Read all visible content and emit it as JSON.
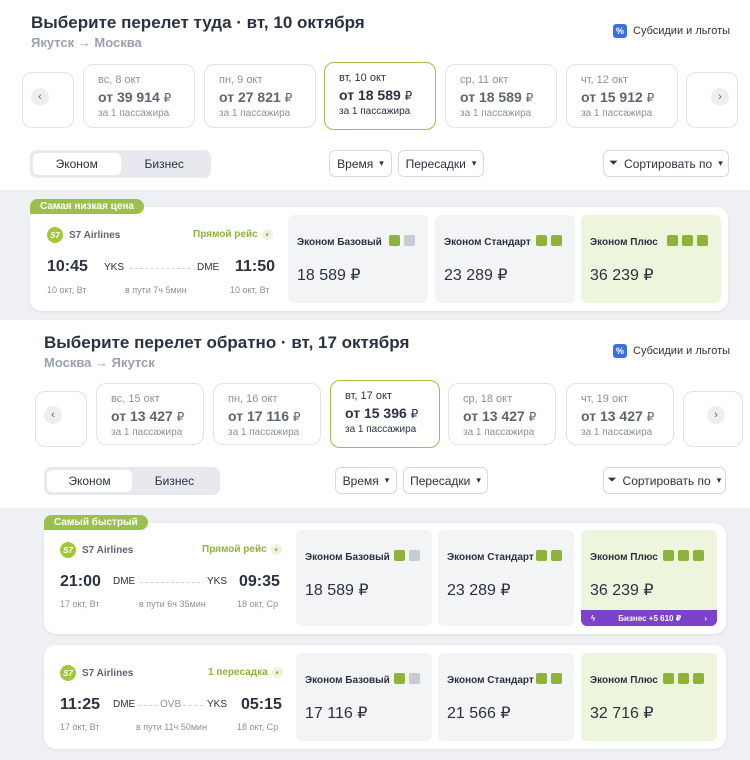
{
  "outbound": {
    "title": "Выберите перелет туда · вт, 10 октября",
    "route": "Якутск → Москва",
    "subsidies": "Субсидии и льготы",
    "dates": [
      {
        "day": "вс, 8 окт",
        "price": "от 39 914",
        "note": "за 1 пассажира"
      },
      {
        "day": "пн, 9 окт",
        "price": "от 27 821",
        "note": "за 1 пассажира"
      },
      {
        "day": "вт, 10 окт",
        "price": "от 18 589",
        "note": "за 1 пассажира",
        "selected": true
      },
      {
        "day": "ср, 11 окт",
        "price": "от 18 589",
        "note": "за 1 пассажира"
      },
      {
        "day": "чт, 12 окт",
        "price": "от 15 912",
        "note": "за 1 пассажира"
      }
    ],
    "class_tabs": [
      "Эконом",
      "Бизнес"
    ],
    "filters": {
      "time": "Время",
      "transfers": "Пересадки",
      "sort": "Сортировать по"
    },
    "flights": [
      {
        "badge": "Самая низкая цена",
        "airline": "S7 Airlines",
        "stops": "Прямой рейс",
        "dep_time": "10:45",
        "dep_code": "YKS",
        "arr_code": "DME",
        "arr_time": "11:50",
        "dep_date": "10 окт, Вт",
        "duration": "в пути 7ч 5мин",
        "arr_date": "10 окт, Вт",
        "fares": [
          {
            "name": "Эконом Базовый",
            "price": "18 589 ₽"
          },
          {
            "name": "Эконом Стандарт",
            "price": "23 289 ₽"
          },
          {
            "name": "Эконом Плюс",
            "price": "36 239 ₽"
          }
        ]
      }
    ]
  },
  "return": {
    "title": "Выберите перелет обратно · вт, 17 октября",
    "route": "Москва → Якутск",
    "subsidies": "Субсидии и льготы",
    "dates": [
      {
        "day": "вс, 15 окт",
        "price": "от 13 427",
        "note": "за 1 пассажира"
      },
      {
        "day": "пн, 16 окт",
        "price": "от 17 116",
        "note": "за 1 пассажира"
      },
      {
        "day": "вт, 17 окт",
        "price": "от 15 396",
        "note": "за 1 пассажира",
        "selected": true
      },
      {
        "day": "ср, 18 окт",
        "price": "от 13 427",
        "note": "за 1 пассажира"
      },
      {
        "day": "чт, 19 окт",
        "price": "от 13 427",
        "note": "за 1 пассажира"
      }
    ],
    "class_tabs": [
      "Эконом",
      "Бизнес"
    ],
    "filters": {
      "time": "Время",
      "transfers": "Пересадки",
      "sort": "Сортировать по"
    },
    "flights": [
      {
        "badge": "Самый быстрый",
        "airline": "S7 Airlines",
        "stops": "Прямой рейс",
        "dep_time": "21:00",
        "dep_code": "DME",
        "arr_code": "YKS",
        "arr_time": "09:35",
        "dep_date": "17 окт, Вт",
        "duration": "в пути 6ч 35мин",
        "arr_date": "18 окт, Ср",
        "fares": [
          {
            "name": "Эконом Базовый",
            "price": "18 589 ₽"
          },
          {
            "name": "Эконом Стандарт",
            "price": "23 289 ₽"
          },
          {
            "name": "Эконом Плюс",
            "price": "36 239 ₽"
          }
        ],
        "business_upsell": "Бизнес +5 610 ₽"
      },
      {
        "airline": "S7 Airlines",
        "stops": "1 пересадка",
        "dep_time": "11:25",
        "dep_code": "DME",
        "via_code": "OVB",
        "arr_code": "YKS",
        "arr_time": "05:15",
        "dep_date": "17 окт, Вт",
        "duration": "в пути 11ч 50мин",
        "arr_date": "18 окт, Ср",
        "fares": [
          {
            "name": "Эконом Базовый",
            "price": "17 116 ₽"
          },
          {
            "name": "Эконом Стандарт",
            "price": "21 566 ₽"
          },
          {
            "name": "Эконом Плюс",
            "price": "32 716 ₽"
          }
        ]
      }
    ]
  },
  "icons": {
    "prev": "chevron-left-icon",
    "next": "chevron-right-icon",
    "filter": "funnel-icon",
    "percent": "percent-icon"
  },
  "colors": {
    "accent_green": "#9cc04c",
    "business_purple": "#7c42c9",
    "plus_bg": "#eef5dd"
  }
}
